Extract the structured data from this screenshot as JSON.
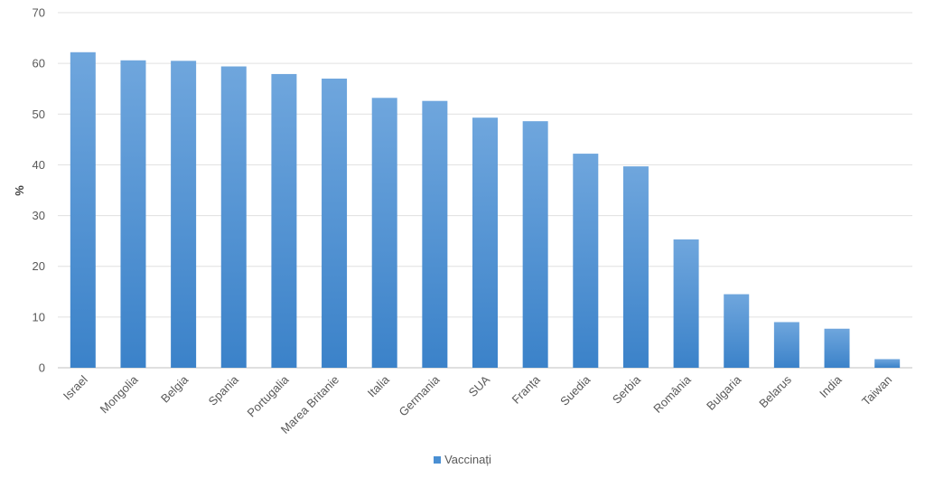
{
  "chart_data": {
    "type": "bar",
    "title": "",
    "xlabel": "",
    "ylabel": "%",
    "ylim": [
      0,
      70
    ],
    "yticks": [
      0,
      10,
      20,
      30,
      40,
      50,
      60,
      70
    ],
    "grid": true,
    "legend_position": "bottom",
    "categories": [
      "Israel",
      "Mongolia",
      "Belgia",
      "Spania",
      "Portugalia",
      "Marea Britanie",
      "Italia",
      "Germania",
      "SUA",
      "Franța",
      "Suedia",
      "Serbia",
      "România",
      "Bulgaria",
      "Belarus",
      "India",
      "Taiwan"
    ],
    "series": [
      {
        "name": "Vaccinați",
        "color": "#4a8fd3",
        "values": [
          62.2,
          60.6,
          60.5,
          59.4,
          57.9,
          57.0,
          53.2,
          52.6,
          49.3,
          48.6,
          42.2,
          39.7,
          25.3,
          14.5,
          9.0,
          7.7,
          1.7
        ]
      }
    ]
  }
}
